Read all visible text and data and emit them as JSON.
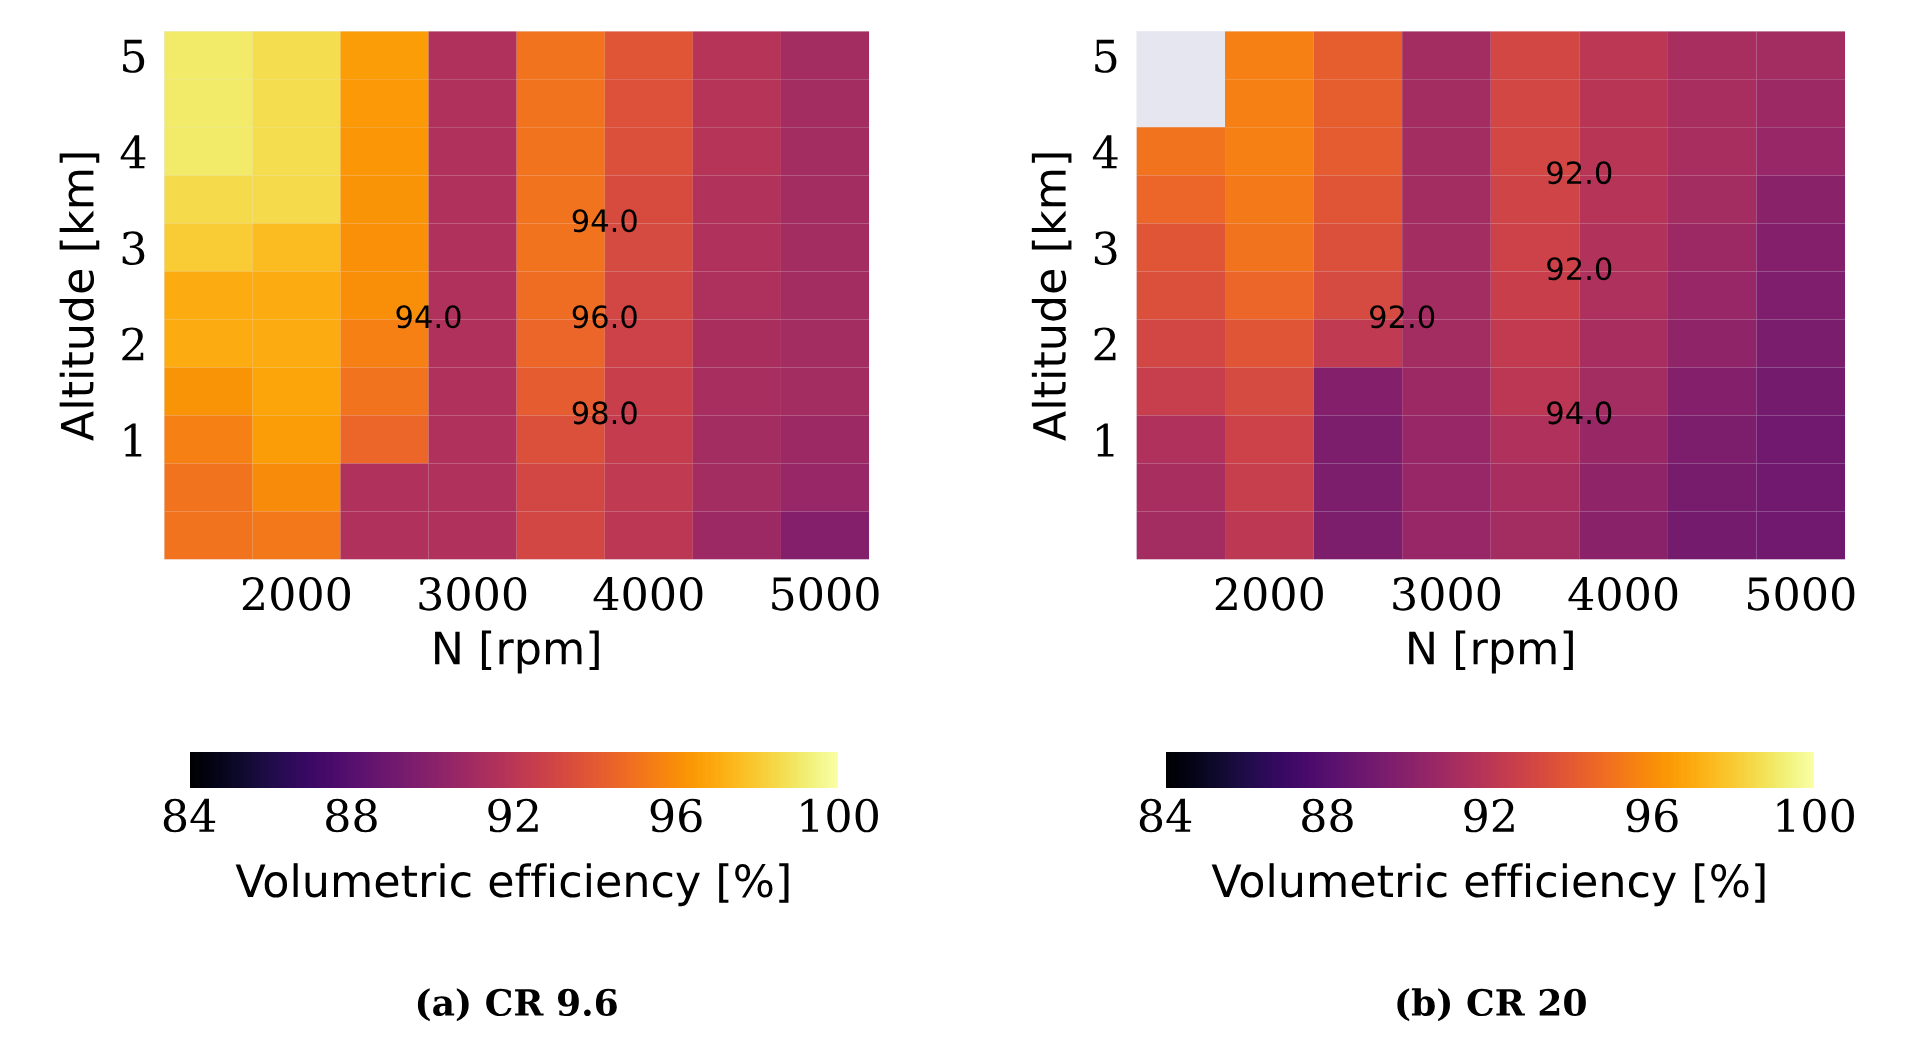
{
  "chart_data": [
    {
      "type": "heatmap",
      "title": "(a) CR 9.6",
      "xlabel": "N [rpm]",
      "ylabel": "Altitude [km]",
      "clabel": "Volumetric efficiency [%]",
      "categories": [
        null,
        "2000",
        null,
        "3000",
        null,
        "4000",
        null,
        "5000"
      ],
      "y_categories": [
        "5",
        null,
        "4",
        null,
        "3",
        null,
        "2",
        null,
        "1",
        null,
        null
      ],
      "cells": [
        [
          99,
          98.6,
          96.5,
          91.5,
          95,
          93.8,
          91.8,
          91
        ],
        [
          99,
          98.6,
          96.4,
          91.5,
          95,
          93.6,
          91.8,
          91
        ],
        [
          99,
          98.6,
          96.3,
          91.5,
          95,
          93.5,
          91.8,
          91
        ],
        [
          98.5,
          98.5,
          96.2,
          91.5,
          95,
          93.3,
          91.6,
          91
        ],
        [
          98,
          97.5,
          96.1,
          91.5,
          95,
          93.2,
          91.5,
          91
        ],
        [
          97,
          97,
          96,
          91.5,
          94.8,
          93,
          91.4,
          91
        ],
        [
          97,
          97,
          95.5,
          91.5,
          94.5,
          92.8,
          91.3,
          91
        ],
        [
          96.2,
          96.8,
          95,
          91.5,
          94.1,
          92.6,
          91.2,
          91
        ],
        [
          95.5,
          96.5,
          94.5,
          91.5,
          93.5,
          92.4,
          91,
          90.8
        ],
        [
          95,
          95.9,
          91.5,
          91.5,
          93,
          92.2,
          91,
          90.5
        ],
        [
          95,
          95.2,
          91.5,
          91.5,
          93,
          92,
          90.8,
          89.8
        ]
      ],
      "clim": [
        84,
        100
      ],
      "cticks": [
        84,
        88,
        92,
        96,
        100
      ],
      "annotations": [
        "98.0",
        "96.0",
        "94.0",
        "94.0"
      ]
    },
    {
      "type": "heatmap",
      "title": "(b) CR 20",
      "xlabel": "N [rpm]",
      "ylabel": "Altitude [km]",
      "clabel": "Volumetric efficiency [%]",
      "categories": [
        null,
        "2000",
        null,
        "3000",
        null,
        "4000",
        null,
        "5000"
      ],
      "y_categories": [
        "5",
        null,
        "4",
        null,
        "3",
        null,
        "2",
        null,
        "1",
        null,
        null
      ],
      "cells": [
        [
          null,
          95.5,
          94.2,
          91,
          93,
          92,
          91.2,
          91
        ],
        [
          null,
          95.5,
          94.2,
          91,
          93,
          91.9,
          91.2,
          90.8
        ],
        [
          95,
          95.5,
          94.1,
          91,
          93,
          91.9,
          91.2,
          90.5
        ],
        [
          94.5,
          95.3,
          93.8,
          91,
          92.9,
          91.8,
          91,
          90
        ],
        [
          93.8,
          95,
          93.5,
          91,
          92.8,
          91.6,
          90.8,
          89.8
        ],
        [
          93.5,
          94.5,
          93.2,
          91,
          92.6,
          91.4,
          90.5,
          89.6
        ],
        [
          93,
          93.8,
          92.2,
          91,
          92.3,
          91.2,
          90.2,
          89.4
        ],
        [
          92.5,
          93.2,
          89.8,
          90.8,
          92,
          91,
          89.8,
          89.2
        ],
        [
          91.5,
          92.8,
          89.5,
          90.5,
          91.5,
          90.6,
          89.5,
          89
        ],
        [
          91.2,
          92.5,
          89.5,
          90.5,
          91.2,
          90.2,
          89.3,
          89
        ],
        [
          91,
          92.1,
          89.5,
          90.5,
          91,
          90,
          89.2,
          89
        ]
      ],
      "clim": [
        84,
        100
      ],
      "cticks": [
        84,
        88,
        92,
        96,
        100
      ],
      "annotations": [
        "94.0",
        "92.0",
        "92.0",
        "92.0"
      ]
    }
  ]
}
